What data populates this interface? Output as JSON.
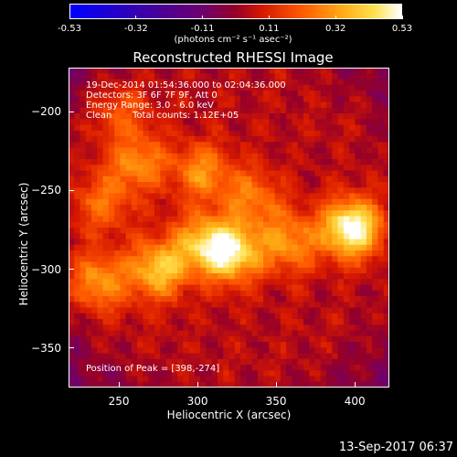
{
  "chart_data": {
    "type": "heatmap",
    "title": "Reconstructed RHESSI Image",
    "xlabel": "Heliocentric X (arcsec)",
    "ylabel": "Heliocentric Y (arcsec)",
    "xlim": [
      218,
      422
    ],
    "ylim": [
      -375,
      -172
    ],
    "x_ticks": [
      "250",
      "300",
      "350",
      "400"
    ],
    "y_ticks": [
      "-200",
      "-250",
      "-300",
      "-350"
    ],
    "colorbar": {
      "ticks": [
        "-0.53",
        "-0.32",
        "-0.11",
        "0.11",
        "0.32",
        "0.53"
      ],
      "unit_label": "(photons cm⁻² s⁻¹ asec⁻²)",
      "range": [
        -0.53,
        0.53
      ],
      "colormap": "RHESSI red-temperature (blue to purple to red to yellow to white)"
    },
    "annotations": {
      "time_range": "19-Dec-2014 01:54:36.000 to 02:04:36.000",
      "detectors": "Detectors: 3F 6F 7F 9F, Att 0",
      "energy_range": "Energy Range: 3.0 - 6.0 keV",
      "method": "Clean",
      "total_counts": "Total counts: 1.12E+05",
      "peak_position": "Position of Peak = [398,-274]"
    },
    "sources": [
      {
        "x": 398,
        "y": -274,
        "intensity": 0.53
      },
      {
        "x": 322,
        "y": -290,
        "intensity": 0.42
      },
      {
        "x": 275,
        "y": -300,
        "intensity": 0.36
      },
      {
        "x": 303,
        "y": -283,
        "intensity": 0.3
      },
      {
        "x": 358,
        "y": -283,
        "intensity": 0.27
      },
      {
        "x": 237,
        "y": -308,
        "intensity": 0.27
      },
      {
        "x": 262,
        "y": -232,
        "intensity": 0.25
      },
      {
        "x": 303,
        "y": -238,
        "intensity": 0.25
      },
      {
        "x": 335,
        "y": -255,
        "intensity": 0.22
      },
      {
        "x": 240,
        "y": -258,
        "intensity": 0.2
      },
      {
        "x": 250,
        "y": -200,
        "intensity": 0.15
      }
    ]
  },
  "footer": {
    "date": "13-Sep-2017 06:37"
  }
}
